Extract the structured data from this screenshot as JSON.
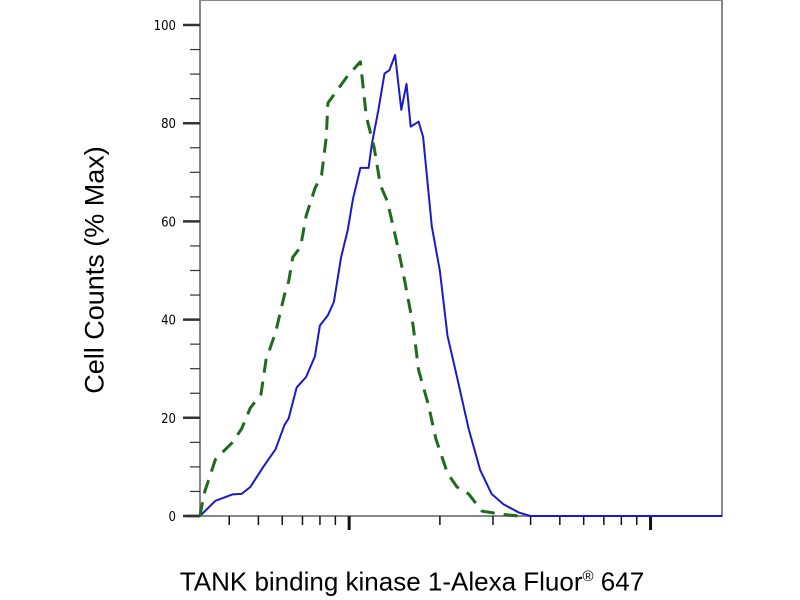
{
  "chart_data": {
    "type": "line",
    "title": "",
    "xlabel_main": "TANK binding kinase 1-Alexa Fluor",
    "xlabel_sup": "®",
    "xlabel_tail": " 647",
    "ylabel": "Cell Counts (% Max)",
    "xscale": "log",
    "xlim": [
      32,
      1726
    ],
    "ylim": [
      0,
      100
    ],
    "yticks": [
      0,
      20,
      40,
      60,
      80,
      100
    ],
    "ytick_labels": [
      "0",
      "20",
      "40",
      "60",
      "80",
      "100"
    ],
    "xtick_labels": [],
    "grid": false,
    "series": [
      {
        "style": "solid",
        "color": "#1a1acc",
        "x": [
          32,
          36,
          41,
          44,
          47,
          52,
          57,
          61,
          63,
          67,
          72,
          77,
          80,
          85,
          89,
          94,
          99,
          103,
          109,
          116,
          119,
          125,
          131,
          136,
          142,
          149,
          155,
          160,
          170,
          176,
          188,
          200,
          212,
          228,
          249,
          272,
          297,
          325,
          366,
          399,
          1726
        ],
        "y": [
          0,
          3.1,
          4.4,
          4.5,
          5.9,
          10.1,
          13.6,
          18.5,
          19.9,
          26.2,
          28.3,
          32.5,
          38.8,
          40.9,
          43.6,
          52.7,
          58.3,
          64.6,
          70.9,
          70.9,
          75.8,
          82.7,
          90.1,
          90.8,
          93.9,
          82.7,
          88,
          79.3,
          80.3,
          77.2,
          59,
          49.9,
          36.7,
          28.3,
          17.8,
          9.4,
          4.5,
          2.4,
          0.7,
          0,
          0
        ]
      },
      {
        "style": "dashed",
        "color": "#1e6b1e",
        "x": [
          32,
          33,
          36,
          41,
          44,
          47,
          51,
          53,
          57,
          61,
          63,
          65,
          69,
          72,
          77,
          81,
          84,
          85,
          92,
          99,
          109,
          114,
          121,
          127,
          134,
          145,
          153,
          163,
          170,
          183,
          194,
          212,
          228,
          249,
          276,
          325,
          366
        ],
        "y": [
          0,
          4.5,
          11.5,
          15,
          17.8,
          22,
          24.8,
          31.8,
          37.4,
          45,
          47.8,
          52.7,
          54.8,
          61.1,
          66.7,
          69.5,
          77.2,
          84.1,
          87,
          89.7,
          92.5,
          81.4,
          75.1,
          67.4,
          64,
          54.8,
          47.8,
          38.8,
          29.7,
          22.7,
          15.7,
          8.7,
          5.9,
          4.5,
          1,
          0.3,
          0
        ]
      }
    ]
  }
}
